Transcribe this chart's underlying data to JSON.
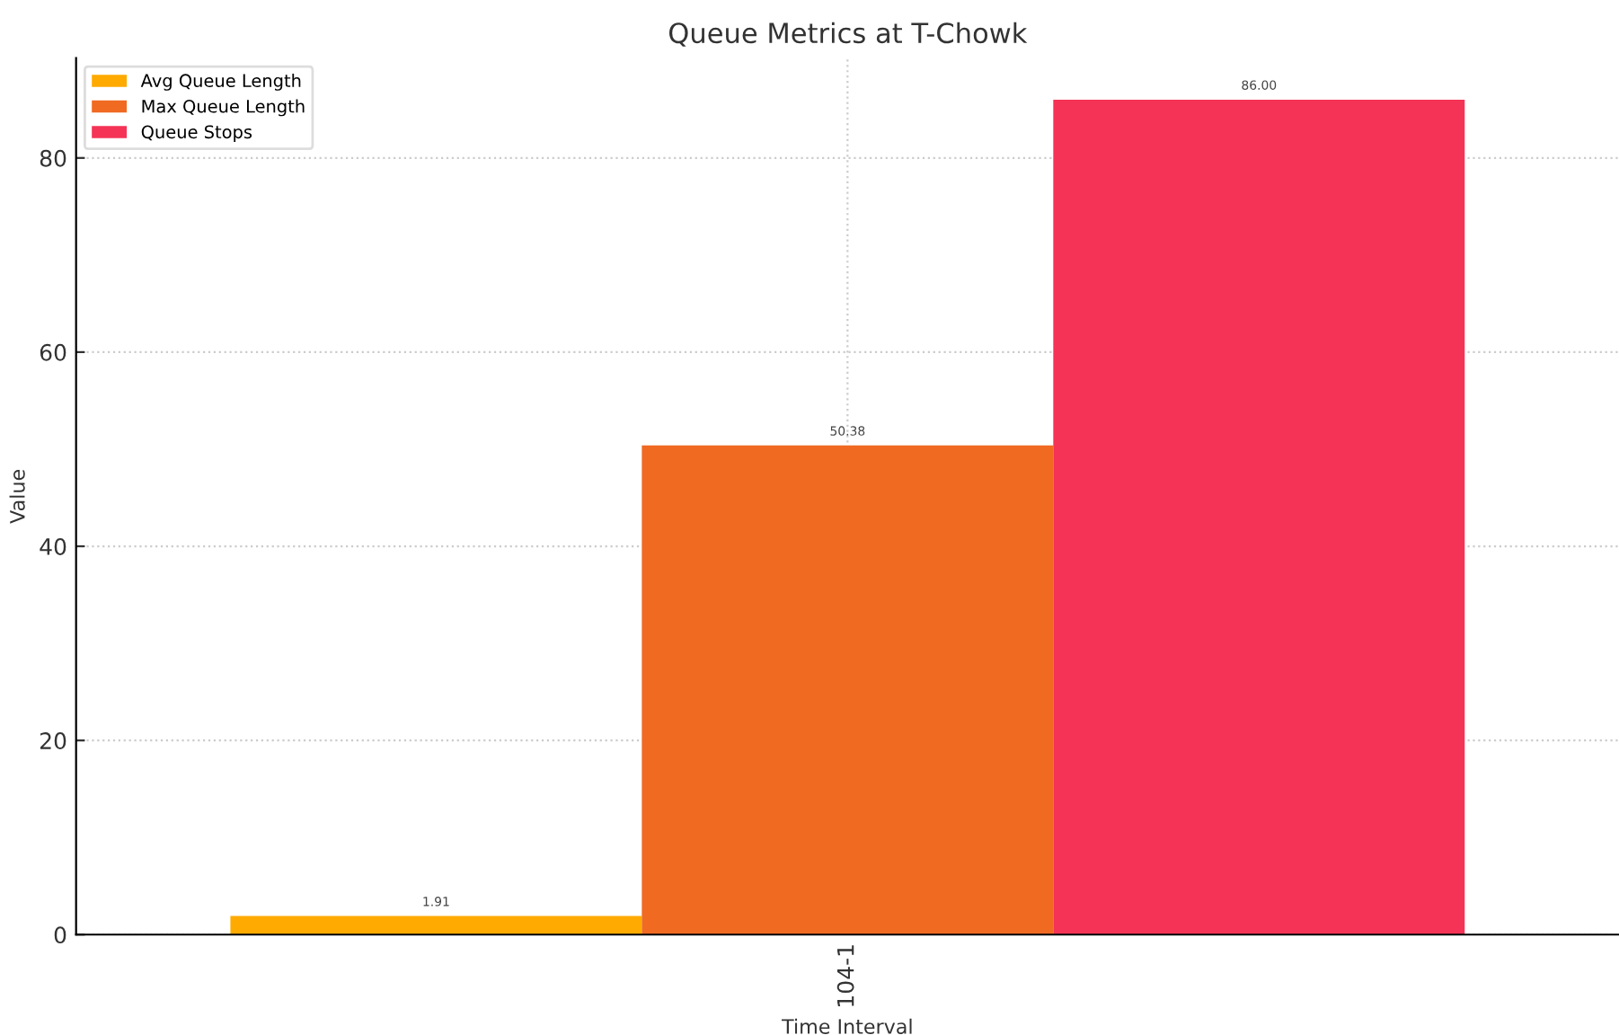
{
  "chart_data": {
    "type": "bar",
    "title": "Queue Metrics at T-Chowk",
    "xlabel": "Time Interval",
    "ylabel": "Value",
    "categories": [
      "104-1"
    ],
    "series": [
      {
        "name": "Avg Queue Length",
        "color": "#ffaa00",
        "values": [
          1.91
        ],
        "value_labels": [
          "1.91"
        ]
      },
      {
        "name": "Max Queue Length",
        "color": "#f06a22",
        "values": [
          50.38
        ],
        "value_labels": [
          "50.38"
        ]
      },
      {
        "name": "Queue Stops",
        "color": "#f43356",
        "values": [
          86.0
        ],
        "value_labels": [
          "86.00"
        ]
      }
    ],
    "ylim": [
      0,
      90.3
    ],
    "yticks": [
      0,
      20,
      40,
      60,
      80
    ],
    "grid": true,
    "legend": "top left"
  }
}
